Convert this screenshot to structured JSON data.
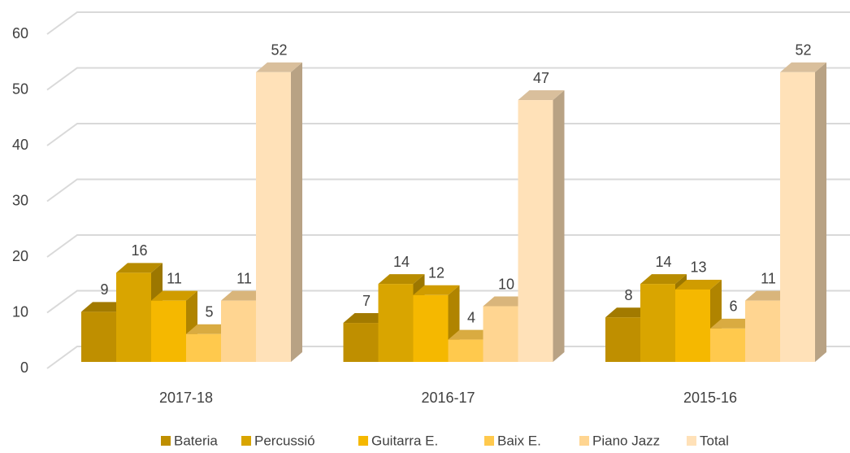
{
  "chart_data": {
    "type": "bar3d",
    "categories": [
      "2017-18",
      "2016-17",
      "2015-16"
    ],
    "series": [
      {
        "name": "Bateria",
        "color": "#bf8f00",
        "values": [
          9,
          7,
          8
        ]
      },
      {
        "name": "Percussió",
        "color": "#d9a500",
        "values": [
          16,
          14,
          14
        ]
      },
      {
        "name": "Guitarra E.",
        "color": "#f5b800",
        "values": [
          11,
          12,
          13
        ]
      },
      {
        "name": "Baix E.",
        "color": "#ffc94d",
        "values": [
          5,
          4,
          6
        ]
      },
      {
        "name": "Piano Jazz",
        "color": "#ffd591",
        "values": [
          11,
          10,
          11
        ]
      },
      {
        "name": "Total",
        "color": "#ffe1b8",
        "values": [
          52,
          47,
          52
        ]
      }
    ],
    "ylim": [
      0,
      60
    ],
    "yticks": [
      0,
      10,
      20,
      30,
      40,
      50,
      60
    ],
    "grid": true,
    "legend": "bottom"
  }
}
